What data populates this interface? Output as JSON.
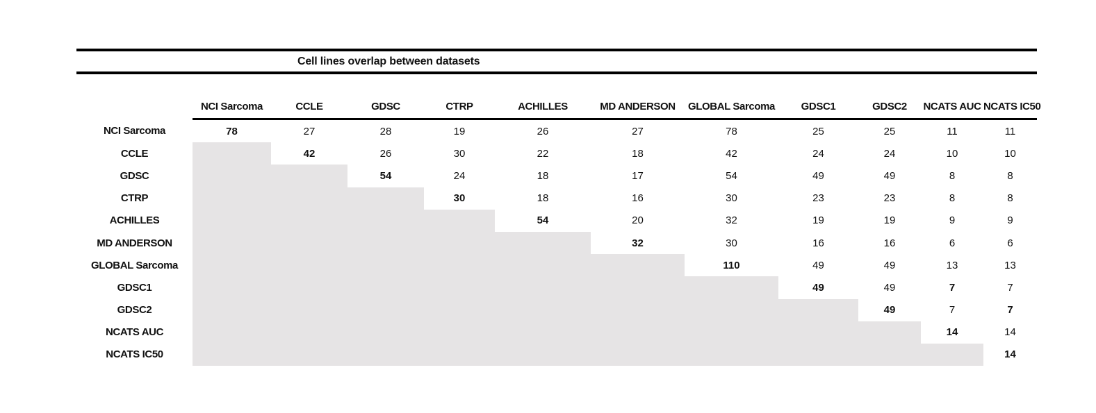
{
  "title": "Cell lines overlap between datasets",
  "table": {
    "columns": [
      "NCI Sarcoma",
      "CCLE",
      "GDSC",
      "CTRP",
      "ACHILLES",
      "MD ANDERSON",
      "GLOBAL Sarcoma",
      "GDSC1",
      "GDSC2",
      "NCATS AUC",
      "NCATS IC50"
    ],
    "rows": [
      {
        "label": "NCI Sarcoma",
        "values": [
          "78",
          "27",
          "28",
          "19",
          "26",
          "27",
          "78",
          "25",
          "25",
          "11",
          "11"
        ],
        "bold": [
          0
        ]
      },
      {
        "label": "CCLE",
        "values": [
          null,
          "42",
          "26",
          "30",
          "22",
          "18",
          "42",
          "24",
          "24",
          "10",
          "10"
        ],
        "bold": [
          1
        ]
      },
      {
        "label": "GDSC",
        "values": [
          null,
          null,
          "54",
          "24",
          "18",
          "17",
          "54",
          "49",
          "49",
          "8",
          "8"
        ],
        "bold": [
          2
        ]
      },
      {
        "label": "CTRP",
        "values": [
          null,
          null,
          null,
          "30",
          "18",
          "16",
          "30",
          "23",
          "23",
          "8",
          "8"
        ],
        "bold": [
          3
        ]
      },
      {
        "label": "ACHILLES",
        "values": [
          null,
          null,
          null,
          null,
          "54",
          "20",
          "32",
          "19",
          "19",
          "9",
          "9"
        ],
        "bold": [
          4
        ]
      },
      {
        "label": "MD ANDERSON",
        "values": [
          null,
          null,
          null,
          null,
          null,
          "32",
          "30",
          "16",
          "16",
          "6",
          "6"
        ],
        "bold": [
          5
        ]
      },
      {
        "label": "GLOBAL Sarcoma",
        "values": [
          null,
          null,
          null,
          null,
          null,
          null,
          "110",
          "49",
          "49",
          "13",
          "13"
        ],
        "bold": [
          6
        ]
      },
      {
        "label": "GDSC1",
        "values": [
          null,
          null,
          null,
          null,
          null,
          null,
          null,
          "49",
          "49",
          "7",
          "7"
        ],
        "bold": [
          7,
          9
        ]
      },
      {
        "label": "GDSC2",
        "values": [
          null,
          null,
          null,
          null,
          null,
          null,
          null,
          null,
          "49",
          "7",
          "7"
        ],
        "bold": [
          8,
          10
        ]
      },
      {
        "label": "NCATS AUC",
        "values": [
          null,
          null,
          null,
          null,
          null,
          null,
          null,
          null,
          null,
          "14",
          "14"
        ],
        "bold": [
          9
        ]
      },
      {
        "label": "NCATS IC50",
        "values": [
          null,
          null,
          null,
          null,
          null,
          null,
          null,
          null,
          null,
          null,
          "14"
        ],
        "bold": [
          10
        ]
      }
    ]
  },
  "colors": {
    "shaded_cell": "#e6e4e5",
    "rule": "#000000",
    "text": "#111111",
    "background": "#ffffff"
  }
}
